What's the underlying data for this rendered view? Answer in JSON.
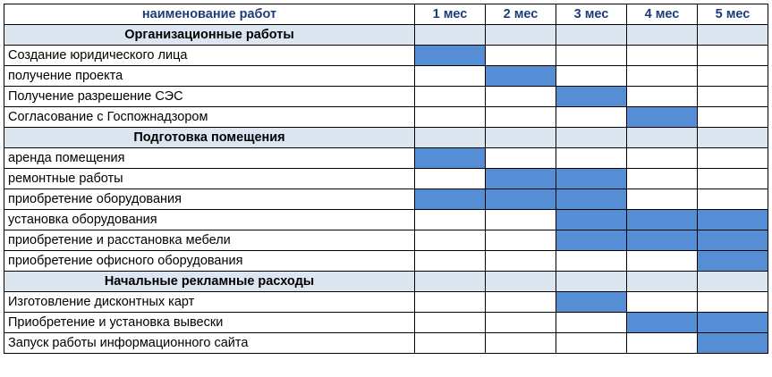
{
  "header": {
    "name_col": "наименование работ",
    "months": [
      "1 мес",
      "2 мес",
      "3 мес",
      "4 мес",
      "5 мес"
    ]
  },
  "colors": {
    "bar": "#558ed5",
    "section_fill": "#dce6f1",
    "header_text": "#1f3c78"
  },
  "chart_data": {
    "type": "table",
    "categories": [
      "1 мес",
      "2 мес",
      "3 мес",
      "4 мес",
      "5 мес"
    ],
    "sections": [
      {
        "title": "Организационные работы",
        "tasks": [
          {
            "name": "Создание юридического лица",
            "months": [
              1
            ]
          },
          {
            "name": "получение проекта",
            "months": [
              2
            ]
          },
          {
            "name": "Получение разрешение СЭС",
            "months": [
              3
            ]
          },
          {
            "name": "Согласование с Госпожнадзором",
            "months": [
              4
            ]
          }
        ]
      },
      {
        "title": "Подготовка помещения",
        "tasks": [
          {
            "name": "аренда помещения",
            "months": [
              1
            ]
          },
          {
            "name": "ремонтные работы",
            "months": [
              2,
              3
            ]
          },
          {
            "name": "приобретение оборудования",
            "months": [
              1,
              2,
              3
            ]
          },
          {
            "name": "установка оборудования",
            "months": [
              3,
              4,
              5
            ]
          },
          {
            "name": "приобретение и расстановка мебели",
            "months": [
              3,
              4,
              5
            ]
          },
          {
            "name": "приобретение офисного оборудования",
            "months": [
              5
            ]
          }
        ]
      },
      {
        "title": "Начальные рекламные расходы",
        "tasks": [
          {
            "name": "Изготовление дисконтных карт",
            "months": [
              3
            ]
          },
          {
            "name": "Приобретение и установка вывески",
            "months": [
              4,
              5
            ]
          },
          {
            "name": "Запуск работы информационного сайта",
            "months": [
              5
            ]
          }
        ]
      }
    ]
  }
}
